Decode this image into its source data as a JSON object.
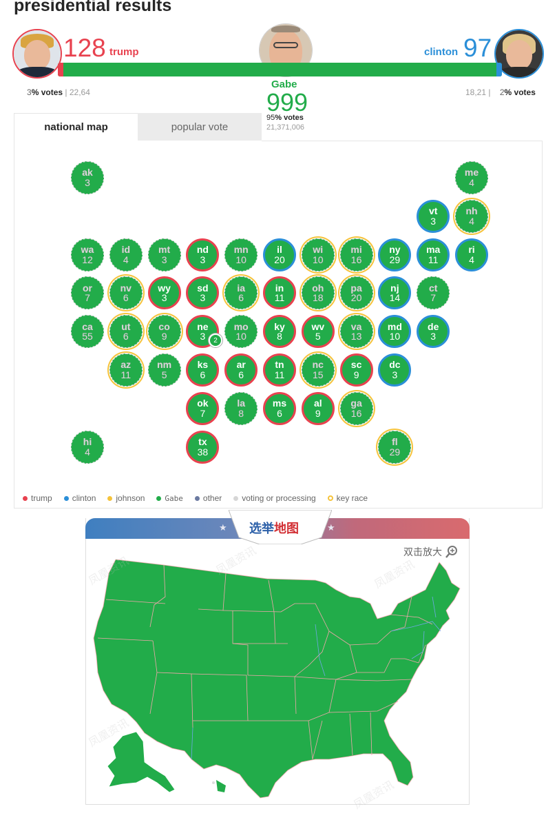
{
  "page": {
    "title": "presidential results"
  },
  "trump": {
    "ev": "128",
    "name": "trump",
    "pct_digit": "3",
    "pct_label": "% votes",
    "raw": "22,64",
    "color": "#e8424f"
  },
  "clinton": {
    "ev": "97",
    "name": "clinton",
    "pct_digit": "2",
    "pct_label": "% votes",
    "raw": "18,21",
    "color": "#2b8fd8"
  },
  "gabe": {
    "ev": "999",
    "name": "Gabe",
    "pct_digit": "95",
    "pct_label": "% votes",
    "raw": "21,371,006",
    "color": "#22ac4a"
  },
  "tabs": [
    {
      "label": "national map",
      "active": true
    },
    {
      "label": "popular vote",
      "active": false
    }
  ],
  "states": [
    {
      "abbr": "ak",
      "ev": "3",
      "row": 0,
      "col": 0,
      "ring": "dashed"
    },
    {
      "abbr": "me",
      "ev": "4",
      "row": 0,
      "col": 10,
      "ring": "dashed"
    },
    {
      "abbr": "vt",
      "ev": "3",
      "row": 1,
      "col": 9,
      "ring": "blue"
    },
    {
      "abbr": "nh",
      "ev": "4",
      "row": 1,
      "col": 10,
      "ring": "yellow-dashed"
    },
    {
      "abbr": "wa",
      "ev": "12",
      "row": 2,
      "col": 0,
      "ring": "dashed"
    },
    {
      "abbr": "id",
      "ev": "4",
      "row": 2,
      "col": 1,
      "ring": "dashed"
    },
    {
      "abbr": "mt",
      "ev": "3",
      "row": 2,
      "col": 2,
      "ring": "dashed"
    },
    {
      "abbr": "nd",
      "ev": "3",
      "row": 2,
      "col": 3,
      "ring": "red"
    },
    {
      "abbr": "mn",
      "ev": "10",
      "row": 2,
      "col": 4,
      "ring": "dashed"
    },
    {
      "abbr": "il",
      "ev": "20",
      "row": 2,
      "col": 5,
      "ring": "blue"
    },
    {
      "abbr": "wi",
      "ev": "10",
      "row": 2,
      "col": 6,
      "ring": "yellow-dashed"
    },
    {
      "abbr": "mi",
      "ev": "16",
      "row": 2,
      "col": 7,
      "ring": "yellow-dashed"
    },
    {
      "abbr": "ny",
      "ev": "29",
      "row": 2,
      "col": 8,
      "ring": "blue"
    },
    {
      "abbr": "ma",
      "ev": "11",
      "row": 2,
      "col": 9,
      "ring": "blue"
    },
    {
      "abbr": "ri",
      "ev": "4",
      "row": 2,
      "col": 10,
      "ring": "blue"
    },
    {
      "abbr": "or",
      "ev": "7",
      "row": 3,
      "col": 0,
      "ring": "dashed"
    },
    {
      "abbr": "nv",
      "ev": "6",
      "row": 3,
      "col": 1,
      "ring": "yellow-dashed"
    },
    {
      "abbr": "wy",
      "ev": "3",
      "row": 3,
      "col": 2,
      "ring": "red"
    },
    {
      "abbr": "sd",
      "ev": "3",
      "row": 3,
      "col": 3,
      "ring": "red"
    },
    {
      "abbr": "ia",
      "ev": "6",
      "row": 3,
      "col": 4,
      "ring": "yellow-dashed"
    },
    {
      "abbr": "in",
      "ev": "11",
      "row": 3,
      "col": 5,
      "ring": "red"
    },
    {
      "abbr": "oh",
      "ev": "18",
      "row": 3,
      "col": 6,
      "ring": "yellow-dashed"
    },
    {
      "abbr": "pa",
      "ev": "20",
      "row": 3,
      "col": 7,
      "ring": "yellow-dashed"
    },
    {
      "abbr": "nj",
      "ev": "14",
      "row": 3,
      "col": 8,
      "ring": "blue"
    },
    {
      "abbr": "ct",
      "ev": "7",
      "row": 3,
      "col": 9,
      "ring": "dashed"
    },
    {
      "abbr": "ca",
      "ev": "55",
      "row": 4,
      "col": 0,
      "ring": "dashed"
    },
    {
      "abbr": "ut",
      "ev": "6",
      "row": 4,
      "col": 1,
      "ring": "yellow-dashed"
    },
    {
      "abbr": "co",
      "ev": "9",
      "row": 4,
      "col": 2,
      "ring": "yellow-dashed"
    },
    {
      "abbr": "ne",
      "ev": "3",
      "row": 4,
      "col": 3,
      "ring": "red"
    },
    {
      "abbr": "mo",
      "ev": "10",
      "row": 4,
      "col": 4,
      "ring": "dashed"
    },
    {
      "abbr": "ky",
      "ev": "8",
      "row": 4,
      "col": 5,
      "ring": "red"
    },
    {
      "abbr": "wv",
      "ev": "5",
      "row": 4,
      "col": 6,
      "ring": "red"
    },
    {
      "abbr": "va",
      "ev": "13",
      "row": 4,
      "col": 7,
      "ring": "yellow-dashed"
    },
    {
      "abbr": "md",
      "ev": "10",
      "row": 4,
      "col": 8,
      "ring": "blue"
    },
    {
      "abbr": "de",
      "ev": "3",
      "row": 4,
      "col": 9,
      "ring": "blue"
    },
    {
      "abbr": "az",
      "ev": "11",
      "row": 5,
      "col": 1,
      "ring": "yellow-dashed"
    },
    {
      "abbr": "nm",
      "ev": "5",
      "row": 5,
      "col": 2,
      "ring": "dashed"
    },
    {
      "abbr": "ks",
      "ev": "6",
      "row": 5,
      "col": 3,
      "ring": "red"
    },
    {
      "abbr": "ar",
      "ev": "6",
      "row": 5,
      "col": 4,
      "ring": "red"
    },
    {
      "abbr": "tn",
      "ev": "11",
      "row": 5,
      "col": 5,
      "ring": "red"
    },
    {
      "abbr": "nc",
      "ev": "15",
      "row": 5,
      "col": 6,
      "ring": "yellow-dashed"
    },
    {
      "abbr": "sc",
      "ev": "9",
      "row": 5,
      "col": 7,
      "ring": "red"
    },
    {
      "abbr": "dc",
      "ev": "3",
      "row": 5,
      "col": 8,
      "ring": "blue"
    },
    {
      "abbr": "ok",
      "ev": "7",
      "row": 6,
      "col": 3,
      "ring": "red"
    },
    {
      "abbr": "la",
      "ev": "8",
      "row": 6,
      "col": 4,
      "ring": "dashed"
    },
    {
      "abbr": "ms",
      "ev": "6",
      "row": 6,
      "col": 5,
      "ring": "red"
    },
    {
      "abbr": "al",
      "ev": "9",
      "row": 6,
      "col": 6,
      "ring": "red"
    },
    {
      "abbr": "ga",
      "ev": "16",
      "row": 6,
      "col": 7,
      "ring": "yellow-dashed"
    },
    {
      "abbr": "hi",
      "ev": "4",
      "row": 7,
      "col": 0,
      "ring": "dashed"
    },
    {
      "abbr": "tx",
      "ev": "38",
      "row": 7,
      "col": 3,
      "ring": "red"
    },
    {
      "abbr": "fl",
      "ev": "29",
      "row": 7,
      "col": 8,
      "ring": "yellow-dashed"
    }
  ],
  "ne_extra": "2",
  "legend": [
    {
      "label": "trump",
      "color": "#e8424f"
    },
    {
      "label": "clinton",
      "color": "#2b8fd8"
    },
    {
      "label": "johnson",
      "color": "#f5c33b"
    },
    {
      "label": "Gabe",
      "color": "#22ac4a"
    },
    {
      "label": "other",
      "color": "#6b7aa1"
    },
    {
      "label": "voting or processing",
      "color": "#d6d6d6"
    },
    {
      "label": "key race",
      "color": "ring"
    }
  ],
  "election_map": {
    "title_blue": "选举",
    "title_red": "地图",
    "zoom_label": "双击放大",
    "watermark": "凤凰资讯"
  },
  "colors": {
    "green": "#22ac4a",
    "red": "#e8424f",
    "blue": "#2b8fd8",
    "yellow": "#f5c33b"
  }
}
